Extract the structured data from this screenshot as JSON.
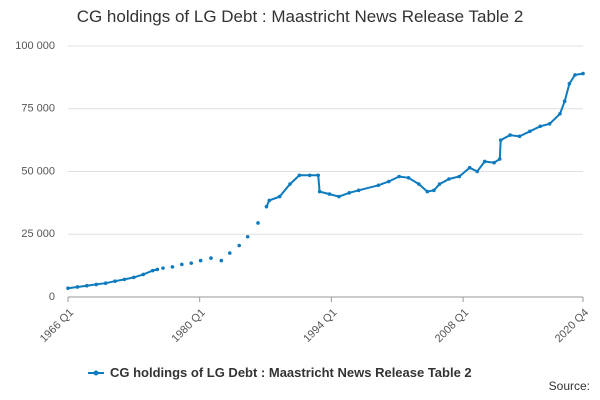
{
  "chart_data": {
    "type": "line",
    "title": "CG holdings of LG Debt : Maastricht News Release Table 2",
    "source": "Source:",
    "xlim": [
      1966,
      2020.75
    ],
    "xticks": [
      {
        "value": 1966,
        "label": "1966 Q1"
      },
      {
        "value": 1980,
        "label": "1980 Q1"
      },
      {
        "value": 1994,
        "label": "1994 Q1"
      },
      {
        "value": 2008,
        "label": "2008 Q1"
      },
      {
        "value": 2020.75,
        "label": "2020 Q4"
      }
    ],
    "ylim": [
      0,
      100000
    ],
    "yticks": [
      0,
      {
        "value": 25000,
        "label": "25 000"
      },
      {
        "value": 50000,
        "label": "50 000"
      },
      {
        "value": 75000,
        "label": "75 000"
      },
      {
        "value": 100000,
        "label": "100 000"
      }
    ],
    "grid": true,
    "legend": "bottom",
    "x": [
      1966,
      1967,
      1968,
      1969,
      1970,
      1971,
      1972,
      1973,
      1974,
      1975,
      1975.5,
      1975.75,
      1976.1,
      1976.6,
      1977.1,
      1977.6,
      1978.1,
      1978.6,
      1979.1,
      1979.6,
      1980.1,
      1980.6,
      1981.2,
      1981.7,
      1982.3,
      1982.7,
      1983.2,
      1983.7,
      1984.2,
      1984.6,
      1985.1,
      1985.6,
      1986.2,
      1986.6,
      1987.1,
      1987.4,
      1988.5,
      1989.6,
      1990.6,
      1991.7,
      1992.6,
      1992.75,
      1993.8,
      1994.8,
      1995.9,
      1996.9,
      1999,
      2000.1,
      2001.2,
      2002.2,
      2003.3,
      2004.2,
      2004.9,
      2005.5,
      2006.5,
      2007.6,
      2008.7,
      2009.5,
      2010.3,
      2011.3,
      2011.9,
      2012,
      2013,
      2014,
      2015.1,
      2016.2,
      2017.2,
      2018.3,
      2018.8,
      2019.3,
      2019.9,
      2020.75
    ],
    "series": [
      {
        "name": "CG holdings of LG Debt : Maastricht News Release Table 2",
        "color": "#0e7bbf",
        "values": [
          3500,
          4000,
          4500,
          5000,
          5500,
          6300,
          7000,
          7800,
          9000,
          10500,
          11000,
          null,
          11500,
          null,
          12000,
          null,
          13000,
          null,
          13500,
          null,
          14500,
          null,
          15500,
          null,
          14500,
          null,
          17500,
          null,
          20500,
          null,
          24000,
          null,
          29500,
          null,
          36000,
          38500,
          40000,
          45000,
          48500,
          48500,
          48500,
          42000,
          41000,
          40000,
          41500,
          42500,
          44500,
          46000,
          48000,
          47500,
          45000,
          42000,
          42500,
          45000,
          47000,
          48000,
          51500,
          50000,
          54000,
          53500,
          55000,
          62500,
          64500,
          64000,
          66000,
          68000,
          69000,
          73000,
          78000,
          85000,
          88500,
          89000
        ]
      }
    ]
  }
}
